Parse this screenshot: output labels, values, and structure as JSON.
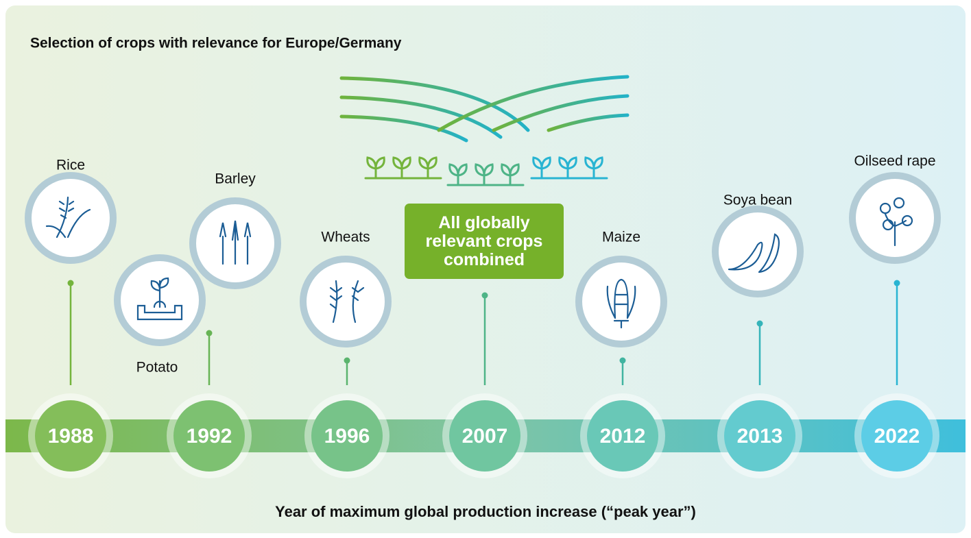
{
  "title": "Selection of crops with relevance for Europe/Germany",
  "caption": "Year of maximum global production increase (“peak year”)",
  "combined_label": "All globally relevant crops combined",
  "crops": [
    {
      "label": "Rice"
    },
    {
      "label": "Potato"
    },
    {
      "label": "Barley"
    },
    {
      "label": "Wheats"
    },
    {
      "label": "Maize"
    },
    {
      "label": "Soya bean"
    },
    {
      "label": "Oilseed rape"
    }
  ],
  "years": [
    "1988",
    "1992",
    "1996",
    "2007",
    "2012",
    "2013",
    "2022"
  ]
}
